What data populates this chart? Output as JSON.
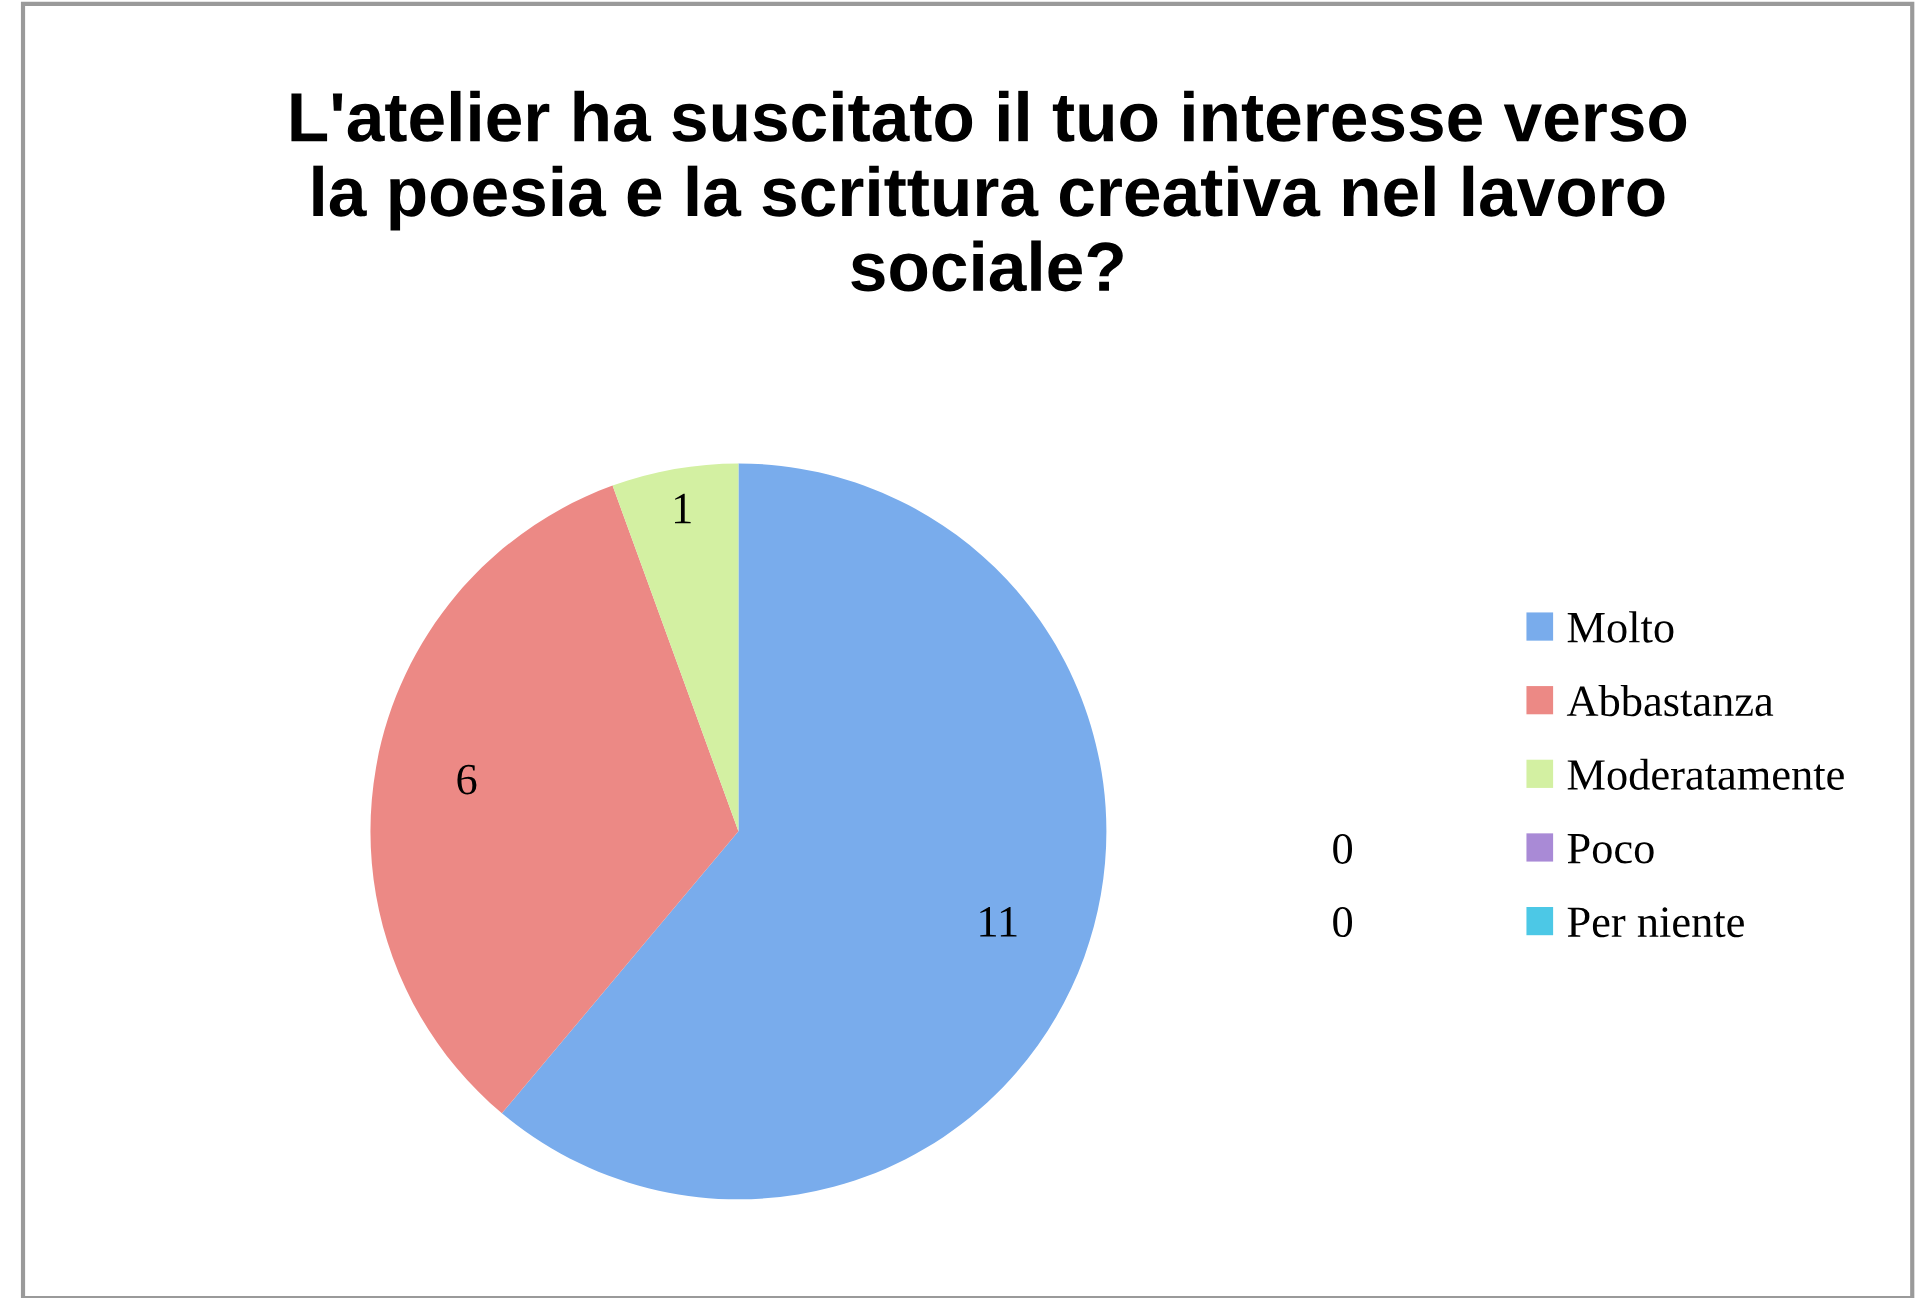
{
  "chart_data": {
    "type": "pie",
    "title": "L'atelier ha suscitato il tuo interesse verso la poesia e la scrittura creativa nel lavoro sociale?",
    "categories": [
      "Molto",
      "Abbastanza",
      "Moderatamente",
      "Poco",
      "Per niente"
    ],
    "values": [
      11,
      6,
      1,
      0,
      0
    ],
    "colors": [
      "#79acec",
      "#ec8985",
      "#d3f0a2",
      "#a98ad6",
      "#4cc8e6"
    ],
    "value_labels": [
      "11",
      "6",
      "1",
      "0",
      "0"
    ],
    "legend": "right"
  }
}
